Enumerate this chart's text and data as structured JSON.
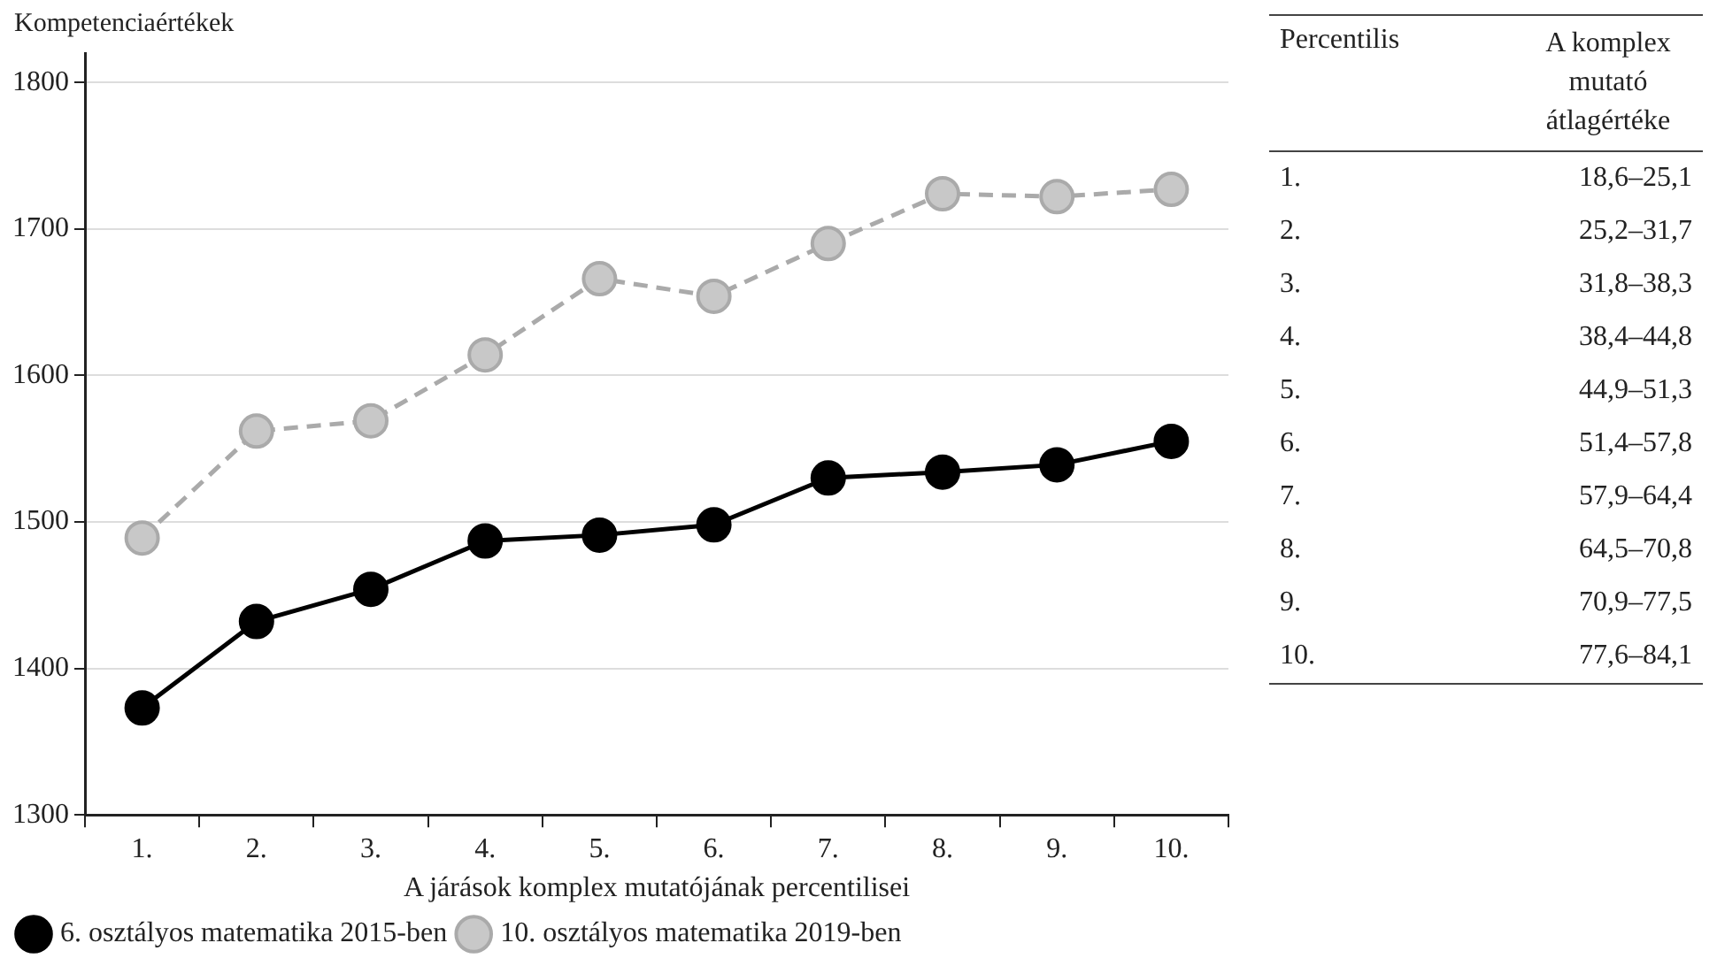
{
  "chart_data": {
    "type": "line",
    "ylabel": "Kompetenciaértékek",
    "xlabel": "A járások komplex mutatójának percentilisei",
    "categories": [
      "1.",
      "2.",
      "3.",
      "4.",
      "5.",
      "6.",
      "7.",
      "8.",
      "9.",
      "10."
    ],
    "series": [
      {
        "name": "6. osztályos matematika 2015-ben",
        "color": "#000000",
        "line_style": "solid",
        "values": [
          1373,
          1432,
          1454,
          1487,
          1491,
          1498,
          1530,
          1534,
          1539,
          1555
        ]
      },
      {
        "name": "10. osztályos matematika 2019-ben",
        "color": "#aaaaaa",
        "line_style": "dashed",
        "values": [
          1489,
          1562,
          1569,
          1614,
          1666,
          1654,
          1690,
          1724,
          1722,
          1727
        ]
      }
    ],
    "ylim": [
      1300,
      1820
    ],
    "yticks": [
      1300,
      1400,
      1500,
      1600,
      1700,
      1800
    ],
    "grid": "y",
    "legend": "bottom",
    "marker": "circle",
    "annotations": [
      "Percentilis",
      "A komplex mutató átlagértéke",
      "1.",
      "18,6–25,1",
      "2.",
      "25,2–31,7",
      "3.",
      "31,8–38,3",
      "4.",
      "38,4–44,8",
      "5.",
      "44,9–51,3",
      "6.",
      "51,4–57,8",
      "7.",
      "57,9–64,4",
      "8.",
      "64,5–70,8",
      "9.",
      "70,9–77,5",
      "10.",
      "77,6–84,1"
    ]
  }
}
